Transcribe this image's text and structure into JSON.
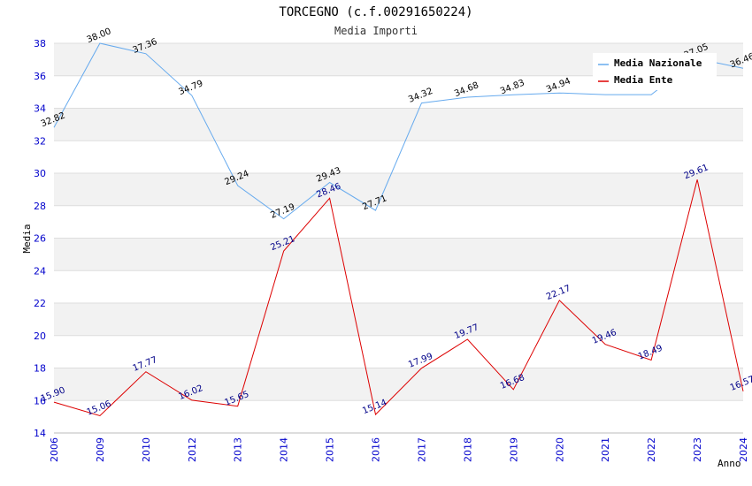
{
  "chart_data": {
    "type": "line",
    "title": "TORCEGNO (c.f.00291650224)",
    "subtitle": "Media Importi",
    "xlabel": "Anno",
    "ylabel": "Media",
    "ylim": [
      14,
      38
    ],
    "yticks": [
      14,
      16,
      18,
      20,
      22,
      24,
      26,
      28,
      30,
      32,
      34,
      36,
      38
    ],
    "categories": [
      "2006",
      "2009",
      "2010",
      "2012",
      "2013",
      "2014",
      "2015",
      "2016",
      "2017",
      "2018",
      "2019",
      "2020",
      "2021",
      "2022",
      "2023",
      "2024"
    ],
    "grid": "horizontal bands",
    "legend_position": "top-right",
    "series": [
      {
        "name": "Media Nazionale",
        "color": "#66aaee",
        "label_color": "#000000",
        "values": [
          32.82,
          38.0,
          37.36,
          34.79,
          29.24,
          27.19,
          29.43,
          27.71,
          34.32,
          34.68,
          34.83,
          34.94,
          34.84,
          34.84,
          37.05,
          36.46
        ],
        "labels": [
          "32.82",
          "38.00",
          "37.36",
          "34.79",
          "29.24",
          "27.19",
          "29.43",
          "27.71",
          "34.32",
          "34.68",
          "34.83",
          "34.94",
          "",
          "",
          "37.05",
          "36.46"
        ]
      },
      {
        "name": "Media Ente",
        "color": "#dd0000",
        "label_color": "#000088",
        "values": [
          15.9,
          15.06,
          17.77,
          16.02,
          15.65,
          25.21,
          28.46,
          15.14,
          17.99,
          19.77,
          16.68,
          22.17,
          19.46,
          18.49,
          29.61,
          16.57
        ],
        "labels": [
          "15.90",
          "15.06",
          "17.77",
          "16.02",
          "15.65",
          "25.21",
          "28.46",
          "15.14",
          "17.99",
          "19.77",
          "16.68",
          "22.17",
          "19.46",
          "18.49",
          "29.61",
          "16.57"
        ]
      }
    ]
  }
}
